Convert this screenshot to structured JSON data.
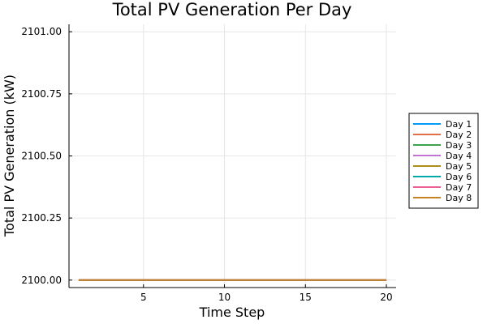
{
  "chart_data": {
    "type": "line",
    "title": "Total PV Generation Per Day",
    "xlabel": "Time Step",
    "ylabel": "Total PV Generation (kW)",
    "xlim": [
      0.4,
      20.6
    ],
    "ylim": [
      2099.97,
      2101.03
    ],
    "x_ticks": [
      5,
      10,
      15,
      20
    ],
    "x_tick_labels": [
      "5",
      "10",
      "15",
      "20"
    ],
    "y_ticks": [
      2100.0,
      2100.25,
      2100.5,
      2100.75,
      2101.0
    ],
    "y_tick_labels": [
      "2100.00",
      "2100.25",
      "2100.50",
      "2100.75",
      "2101.00"
    ],
    "grid": true,
    "legend_position": "right",
    "x": [
      1,
      2,
      3,
      4,
      5,
      6,
      7,
      8,
      9,
      10,
      11,
      12,
      13,
      14,
      15,
      16,
      17,
      18,
      19,
      20
    ],
    "series": [
      {
        "name": "Day 1",
        "color": "#009af9",
        "values": [
          2100,
          2100,
          2100,
          2100,
          2100,
          2100,
          2100,
          2100,
          2100,
          2100,
          2100,
          2100,
          2100,
          2100,
          2100,
          2100,
          2100,
          2100,
          2100,
          2100
        ]
      },
      {
        "name": "Day 2",
        "color": "#e26f46",
        "values": [
          2100,
          2100,
          2100,
          2100,
          2100,
          2100,
          2100,
          2100,
          2100,
          2100,
          2100,
          2100,
          2100,
          2100,
          2100,
          2100,
          2100,
          2100,
          2100,
          2100
        ]
      },
      {
        "name": "Day 3",
        "color": "#3da44d",
        "values": [
          2100,
          2100,
          2100,
          2100,
          2100,
          2100,
          2100,
          2100,
          2100,
          2100,
          2100,
          2100,
          2100,
          2100,
          2100,
          2100,
          2100,
          2100,
          2100,
          2100
        ]
      },
      {
        "name": "Day 4",
        "color": "#c271d2",
        "values": [
          2100,
          2100,
          2100,
          2100,
          2100,
          2100,
          2100,
          2100,
          2100,
          2100,
          2100,
          2100,
          2100,
          2100,
          2100,
          2100,
          2100,
          2100,
          2100,
          2100
        ]
      },
      {
        "name": "Day 5",
        "color": "#ac8d18",
        "values": [
          2100,
          2100,
          2100,
          2100,
          2100,
          2100,
          2100,
          2100,
          2100,
          2100,
          2100,
          2100,
          2100,
          2100,
          2100,
          2100,
          2100,
          2100,
          2100,
          2100
        ]
      },
      {
        "name": "Day 6",
        "color": "#00a9ad",
        "values": [
          2100,
          2100,
          2100,
          2100,
          2100,
          2100,
          2100,
          2100,
          2100,
          2100,
          2100,
          2100,
          2100,
          2100,
          2100,
          2100,
          2100,
          2100,
          2100,
          2100
        ]
      },
      {
        "name": "Day 7",
        "color": "#ed5e93",
        "values": [
          2100,
          2100,
          2100,
          2100,
          2100,
          2100,
          2100,
          2100,
          2100,
          2100,
          2100,
          2100,
          2100,
          2100,
          2100,
          2100,
          2100,
          2100,
          2100,
          2100
        ]
      },
      {
        "name": "Day 8",
        "color": "#c68225",
        "values": [
          2100,
          2100,
          2100,
          2100,
          2100,
          2100,
          2100,
          2100,
          2100,
          2100,
          2100,
          2100,
          2100,
          2100,
          2100,
          2100,
          2100,
          2100,
          2100,
          2100
        ]
      }
    ]
  }
}
